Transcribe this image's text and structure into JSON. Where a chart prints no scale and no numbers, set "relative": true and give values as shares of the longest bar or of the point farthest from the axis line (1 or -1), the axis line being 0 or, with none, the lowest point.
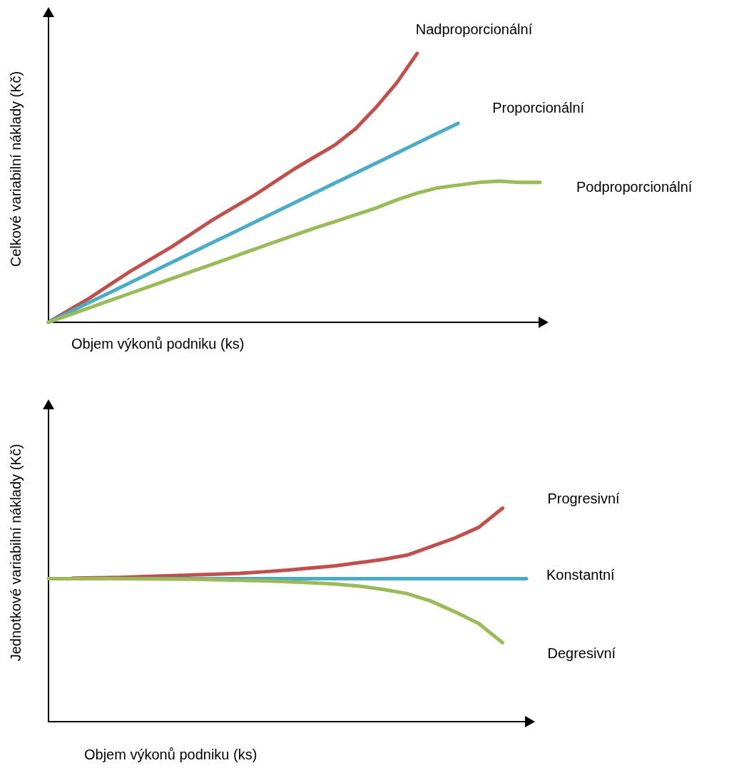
{
  "chart_data": [
    {
      "type": "line",
      "relative": true,
      "xlabel": "Objem výkonů podniku (ks)",
      "ylabel": "Celkové variabilní náklady (Kč)",
      "grid": false,
      "legend": false,
      "marker": "none",
      "line_style": "solid",
      "categories": [
        null,
        null,
        null,
        null,
        null,
        null,
        null,
        null,
        null,
        null,
        null,
        null,
        null,
        null,
        null,
        null,
        null,
        null,
        null,
        null,
        null,
        null,
        null,
        null,
        null
      ],
      "series": [
        {
          "name": "Nadproporcionální",
          "color": "#c0504d",
          "values": [
            0,
            0.045,
            0.09,
            0.14,
            0.19,
            0.235,
            0.28,
            0.33,
            0.38,
            0.425,
            0.47,
            0.52,
            0.57,
            0.615,
            0.66,
            0.72,
            0.8,
            0.89,
            1,
            null,
            null,
            null,
            null,
            null,
            null
          ]
        },
        {
          "name": "Proporcionální",
          "color": "#4bacc6",
          "values": [
            0,
            0.037,
            0.074,
            0.111,
            0.148,
            0.185,
            0.222,
            0.259,
            0.296,
            0.333,
            0.37,
            0.407,
            0.444,
            0.481,
            0.518,
            0.555,
            0.592,
            0.629,
            0.666,
            0.703,
            0.74,
            null,
            null,
            null,
            null
          ]
        },
        {
          "name": "Podproporcionální",
          "color": "#9bbb59",
          "values": [
            0,
            0.027,
            0.054,
            0.081,
            0.108,
            0.135,
            0.162,
            0.189,
            0.216,
            0.243,
            0.27,
            0.297,
            0.324,
            0.35,
            0.375,
            0.4,
            0.425,
            0.455,
            0.48,
            0.5,
            0.51,
            0.52,
            0.525,
            0.52,
            0.52
          ]
        }
      ]
    },
    {
      "type": "line",
      "relative": true,
      "xlabel": "Objem výkonů podniku (ks)",
      "ylabel": "Jednotkové variabilní náklady (Kč)",
      "grid": false,
      "legend": false,
      "marker": "none",
      "line_style": "solid",
      "categories": [
        null,
        null,
        null,
        null,
        null,
        null,
        null,
        null,
        null,
        null,
        null,
        null,
        null,
        null,
        null,
        null,
        null,
        null,
        null,
        null,
        null
      ],
      "series": [
        {
          "name": "Progresivní",
          "color": "#c0504d",
          "values": [
            null,
            0.672,
            0.674,
            0.676,
            0.68,
            0.683,
            0.687,
            0.691,
            0.695,
            0.702,
            0.71,
            0.72,
            0.73,
            0.745,
            0.76,
            0.78,
            0.82,
            0.86,
            0.91,
            1,
            null
          ]
        },
        {
          "name": "Konstantní",
          "color": "#4bacc6",
          "values": [
            null,
            null,
            null,
            null,
            0.67,
            0.67,
            0.67,
            0.67,
            0.67,
            0.67,
            0.67,
            0.67,
            0.67,
            0.67,
            0.67,
            0.67,
            0.67,
            0.67,
            0.67,
            0.67,
            0.67
          ]
        },
        {
          "name": "Degresivní",
          "color": "#9bbb59",
          "values": [
            0.67,
            0.67,
            0.67,
            0.67,
            0.669,
            0.668,
            0.667,
            0.665,
            0.662,
            0.66,
            0.656,
            0.651,
            0.645,
            0.635,
            0.62,
            0.6,
            0.565,
            0.515,
            0.46,
            0.37,
            null
          ]
        }
      ]
    }
  ]
}
